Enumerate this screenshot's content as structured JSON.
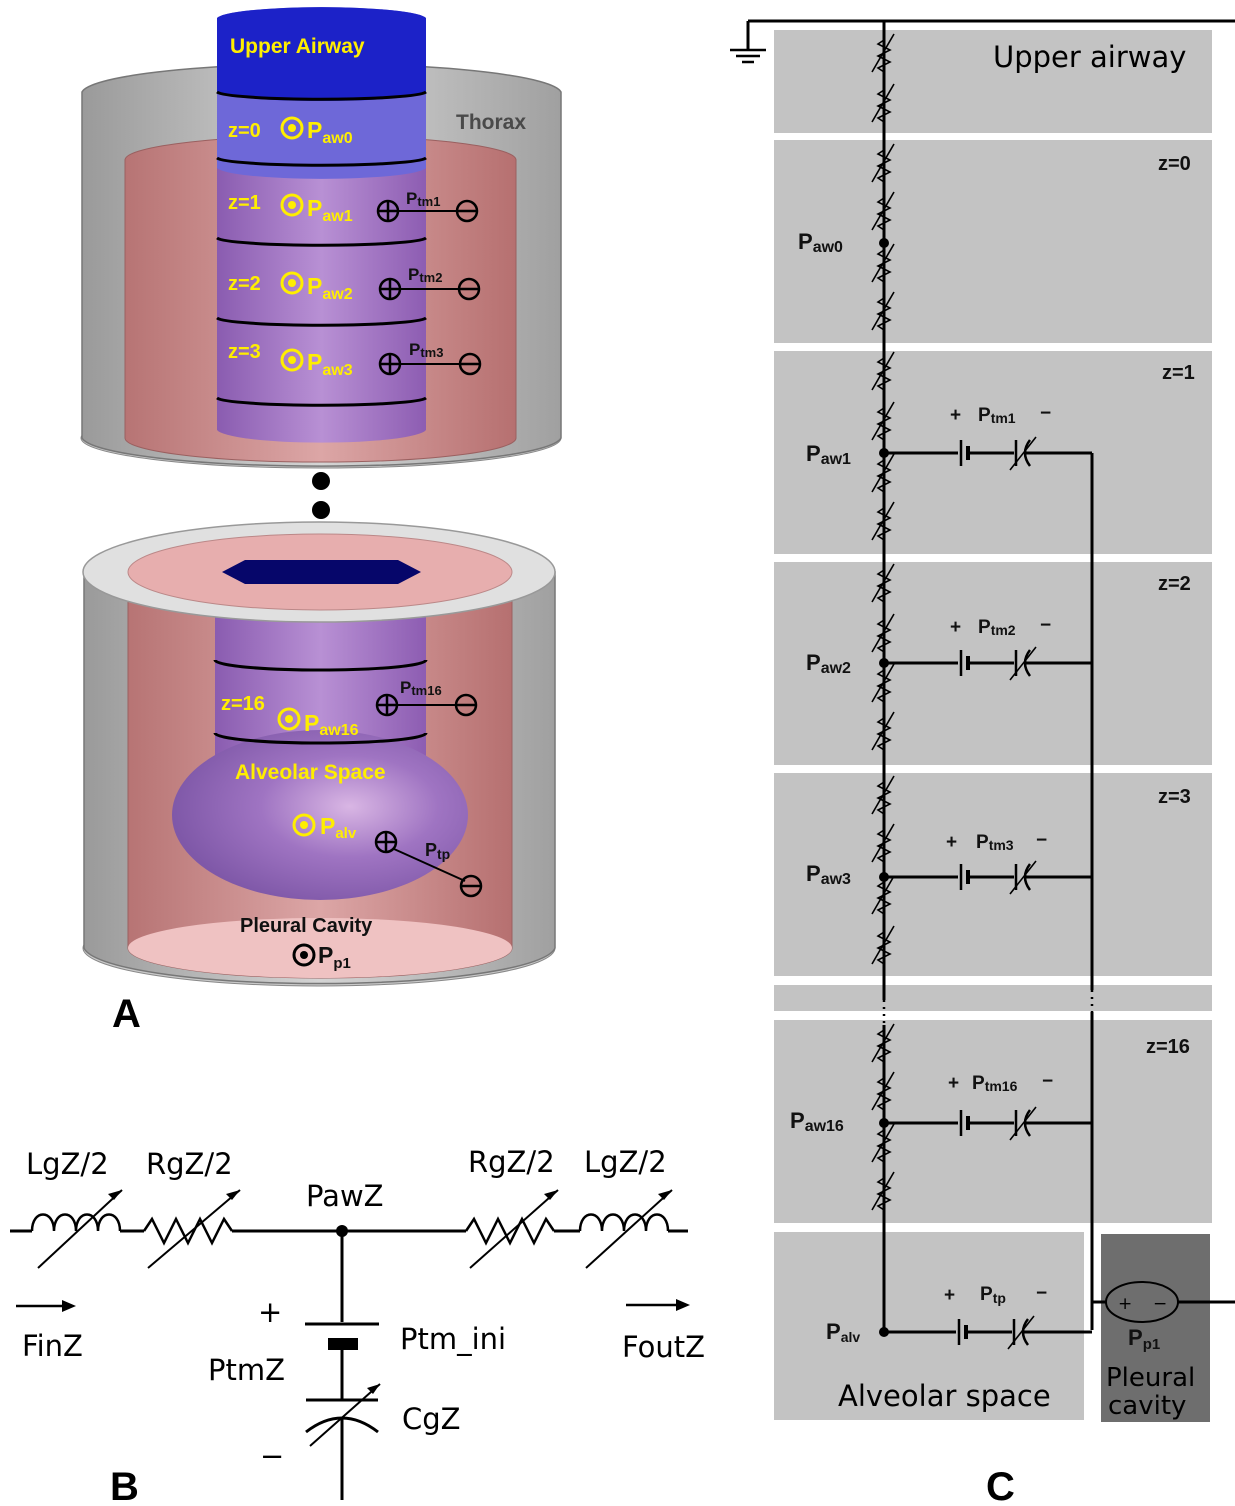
{
  "colors": {
    "airway_blue": "#1a22c8",
    "lumen_dark": "#06066a",
    "airway_purple": "#a474c8",
    "pleura_red": "#c98787",
    "thorax_gray": "#b7b7b7",
    "panel_gray": "#c3c3c3",
    "pleural_panel_gray": "#6e6e6e",
    "label_yellow": "#ffee00"
  },
  "icons": {
    "pressure_node": "circled-dot",
    "plus_terminal": "circled-plus",
    "minus_terminal": "circled-minus",
    "resistor": "variable-resistor",
    "inductor": "variable-inductor",
    "capacitor": "variable-capacitor",
    "ground": "ground-symbol"
  },
  "panel_a": {
    "letter": "A",
    "upper_airway": "Upper Airway",
    "thorax": "Thorax",
    "alveolar_space": "Alveolar Space",
    "pleural_cavity": "Pleural Cavity",
    "pleural_pressure": "P",
    "pleural_pressure_sub": "p1",
    "alveolar_pressure": "P",
    "alveolar_pressure_sub": "alv",
    "transpulmonary": "P",
    "transpulmonary_sub": "tp",
    "generations": [
      {
        "z": "z=0",
        "p": "P",
        "sub": "aw0"
      },
      {
        "z": "z=1",
        "p": "P",
        "sub": "aw1",
        "ptm": "P",
        "ptm_sub": "tm1"
      },
      {
        "z": "z=2",
        "p": "P",
        "sub": "aw2",
        "ptm": "P",
        "ptm_sub": "tm2"
      },
      {
        "z": "z=3",
        "p": "P",
        "sub": "aw3",
        "ptm": "P",
        "ptm_sub": "tm3"
      },
      {
        "z": "z=16",
        "p": "P",
        "sub": "aw16",
        "ptm": "P",
        "ptm_sub": "tm16"
      }
    ]
  },
  "panel_b": {
    "letter": "B",
    "lg_left": "LgZ/2",
    "rg_left": "RgZ/2",
    "rg_right": "RgZ/2",
    "lg_right": "LgZ/2",
    "node": "PawZ",
    "f_in": "FinZ",
    "f_out": "FoutZ",
    "plus": "+",
    "minus": "−",
    "ptm": "PtmZ",
    "ptm_ini": "Ptm_ini",
    "cg": "CgZ"
  },
  "panel_c": {
    "letter": "C",
    "upper_airway": "Upper airway",
    "alveolar_space": "Alveolar space",
    "pleural_cavity_1": "Pleural",
    "pleural_cavity_2": "cavity",
    "pleural_pressure": "P",
    "pleural_pressure_sub": "p1",
    "alveolar": "P",
    "alveolar_sub": "alv",
    "tp": "P",
    "tp_sub": "tp",
    "plus": "+",
    "minus": "−",
    "ellipsis": "⋮",
    "sections": [
      {
        "z": "z=0",
        "node": "P",
        "node_sub": "aw0"
      },
      {
        "z": "z=1",
        "node": "P",
        "node_sub": "aw1",
        "ptm": "P",
        "ptm_sub": "tm1"
      },
      {
        "z": "z=2",
        "node": "P",
        "node_sub": "aw2",
        "ptm": "P",
        "ptm_sub": "tm2"
      },
      {
        "z": "z=3",
        "node": "P",
        "node_sub": "aw3",
        "ptm": "P",
        "ptm_sub": "tm3"
      },
      {
        "z": "z=16",
        "node": "P",
        "node_sub": "aw16",
        "ptm": "P",
        "ptm_sub": "tm16"
      }
    ]
  }
}
